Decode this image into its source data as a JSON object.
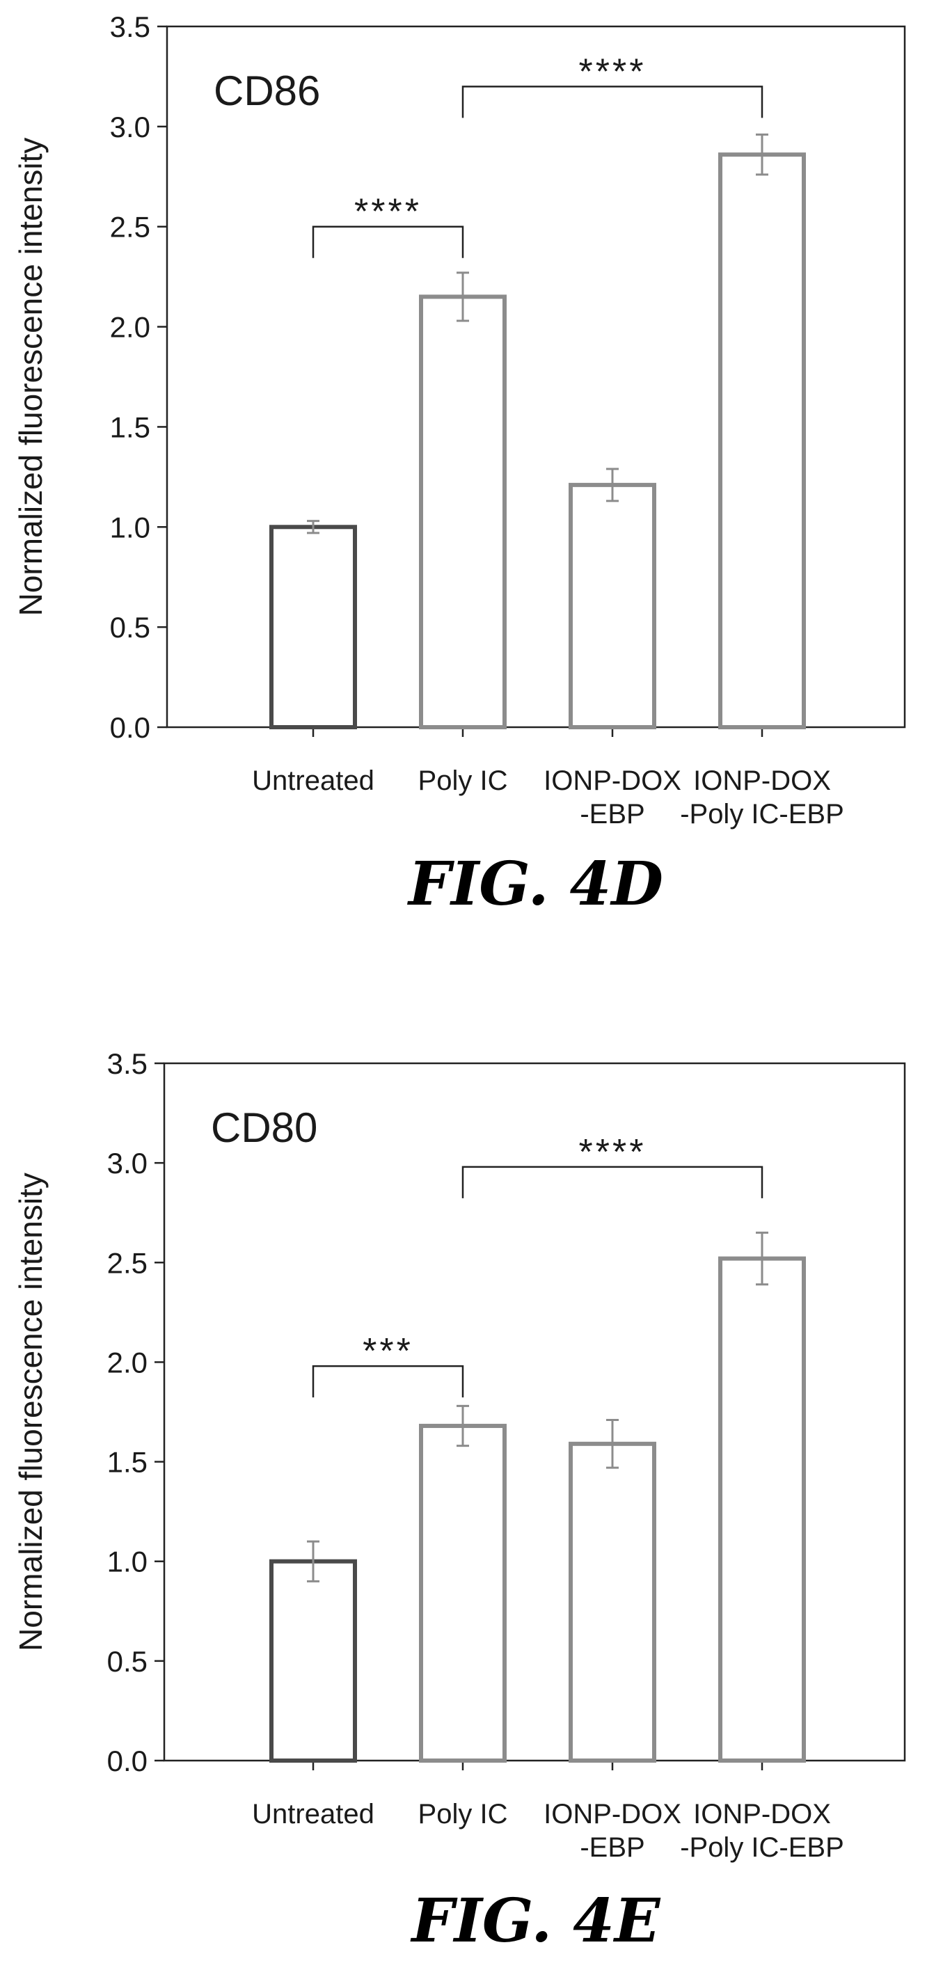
{
  "chart_data": [
    {
      "type": "bar",
      "title": "CD86",
      "ylabel": "Normalized fluorescence intensity",
      "xlabel": "",
      "ylim": [
        0,
        3.5
      ],
      "yticks": [
        "0.0",
        "0.5",
        "1.0",
        "1.5",
        "2.0",
        "2.5",
        "3.0",
        "3.5"
      ],
      "categories": [
        [
          "Untreated"
        ],
        [
          "Poly IC"
        ],
        [
          "IONP-DOX",
          "-EBP"
        ],
        [
          "IONP-DOX",
          "-Poly IC-EBP"
        ]
      ],
      "values": [
        1.0,
        2.15,
        1.21,
        2.86
      ],
      "errors": [
        0.03,
        0.12,
        0.08,
        0.1
      ],
      "bar_colors": [
        "#4a4a4a",
        "#8c8c8c",
        "#8c8c8c",
        "#8c8c8c"
      ],
      "significance": [
        {
          "from": 0,
          "to": 1,
          "label": "****",
          "y": 2.5
        },
        {
          "from": 1,
          "to": 3,
          "label": "****",
          "y": 3.2
        }
      ],
      "caption": "FIG. 4D"
    },
    {
      "type": "bar",
      "title": "CD80",
      "ylabel": "Normalized fluorescence intensity",
      "xlabel": "",
      "ylim": [
        0,
        3.5
      ],
      "yticks": [
        "0.0",
        "0.5",
        "1.0",
        "1.5",
        "2.0",
        "2.5",
        "3.0",
        "3.5"
      ],
      "categories": [
        [
          "Untreated"
        ],
        [
          "Poly IC"
        ],
        [
          "IONP-DOX",
          "-EBP"
        ],
        [
          "IONP-DOX",
          "-Poly IC-EBP"
        ]
      ],
      "values": [
        1.0,
        1.68,
        1.59,
        2.52
      ],
      "errors": [
        0.1,
        0.1,
        0.12,
        0.13
      ],
      "bar_colors": [
        "#4a4a4a",
        "#8c8c8c",
        "#8c8c8c",
        "#8c8c8c"
      ],
      "significance": [
        {
          "from": 0,
          "to": 1,
          "label": "***",
          "y": 1.98
        },
        {
          "from": 1,
          "to": 3,
          "label": "****",
          "y": 2.98
        }
      ],
      "caption": "FIG. 4E"
    }
  ]
}
